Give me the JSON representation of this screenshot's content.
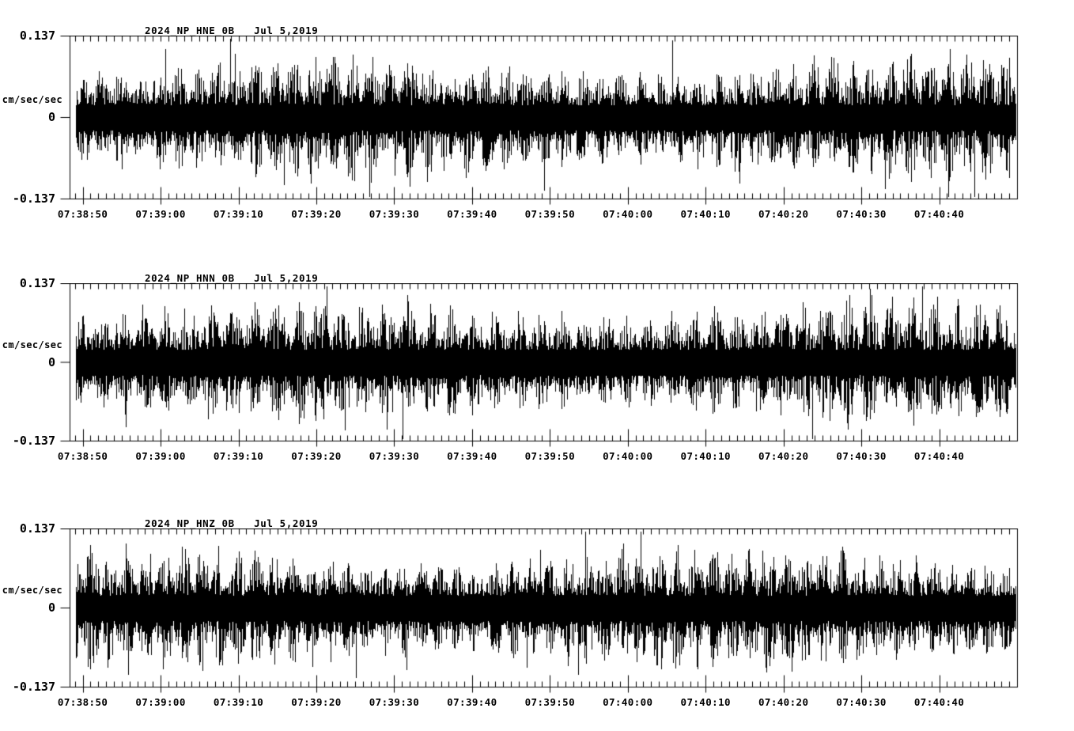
{
  "page": {
    "background": "#ffffff",
    "foreground": "#000000"
  },
  "axis": {
    "y_label": "cm/sec/sec",
    "y_max_label": "0.137",
    "y_zero_label": "0",
    "y_min_label": "-0.137",
    "x_tick_labels": [
      "07:38:50",
      "07:39:00",
      "07:39:10",
      "07:39:20",
      "07:39:30",
      "07:39:40",
      "07:39:50",
      "07:40:00",
      "07:40:10",
      "07:40:20",
      "07:40:30",
      "07:40:40"
    ]
  },
  "panels": [
    {
      "title": "2024_NP_HNE_0B   Jul 5,2019",
      "station_channel": "2024_NP_HNE_0B",
      "date": "Jul 5,2019",
      "y_axis_label": "cm/sec/sec",
      "y_max_label": "0.137",
      "y_zero_label": "0",
      "y_min_label": "-0.137",
      "seed": 11
    },
    {
      "title": "2024_NP_HNN_0B   Jul 5,2019",
      "station_channel": "2024_NP_HNN_0B",
      "date": "Jul 5,2019",
      "y_axis_label": "cm/sec/sec",
      "y_max_label": "0.137",
      "y_zero_label": "0",
      "y_min_label": "-0.137",
      "seed": 47
    },
    {
      "title": "2024_NP_HNZ_0B   Jul 5,2019",
      "station_channel": "2024_NP_HNZ_0B",
      "date": "Jul 5,2019",
      "y_axis_label": "cm/sec/sec",
      "y_max_label": "0.137",
      "y_zero_label": "0",
      "y_min_label": "-0.137",
      "seed": 83
    }
  ],
  "chart_data": [
    {
      "type": "line",
      "subtype": "seismogram",
      "title": "2024_NP_HNE_0B   Jul 5,2019",
      "station_channel": "2024_NP_HNE_0B",
      "date": "Jul 5,2019",
      "ylabel": "cm/sec/sec",
      "ylim": [
        -0.137,
        0.137
      ],
      "y_tick_values": [
        0.137,
        0,
        -0.137
      ],
      "x_tick_labels": [
        "07:38:50",
        "07:39:00",
        "07:39:10",
        "07:39:20",
        "07:39:30",
        "07:39:40",
        "07:39:50",
        "07:40:00",
        "07:40:10",
        "07:40:20",
        "07:40:30",
        "07:40:40"
      ],
      "x_range": {
        "start": "07:38:48",
        "end": "07:40:50"
      },
      "x_minor_tick_seconds": 1,
      "x_major_tick_seconds": 10,
      "grid": false,
      "legend": false,
      "series": [
        {
          "name": "2024_NP_HNE_0B",
          "color": "#000000",
          "description": "continuous high-frequency ground-acceleration noise; dense solid band about ±0.03 cm/sec/sec, repeating bursts to ±0.08-0.11 every ~2.5 s, occasional spikes clipped at ±0.137 full scale",
          "synthesized_seed": 11
        }
      ]
    },
    {
      "type": "line",
      "subtype": "seismogram",
      "title": "2024_NP_HNN_0B   Jul 5,2019",
      "station_channel": "2024_NP_HNN_0B",
      "date": "Jul 5,2019",
      "ylabel": "cm/sec/sec",
      "ylim": [
        -0.137,
        0.137
      ],
      "y_tick_values": [
        0.137,
        0,
        -0.137
      ],
      "x_tick_labels": [
        "07:38:50",
        "07:39:00",
        "07:39:10",
        "07:39:20",
        "07:39:30",
        "07:39:40",
        "07:39:50",
        "07:40:00",
        "07:40:10",
        "07:40:20",
        "07:40:30",
        "07:40:40"
      ],
      "x_range": {
        "start": "07:38:48",
        "end": "07:40:50"
      },
      "x_minor_tick_seconds": 1,
      "x_major_tick_seconds": 10,
      "grid": false,
      "legend": false,
      "series": [
        {
          "name": "2024_NP_HNN_0B",
          "color": "#000000",
          "description": "continuous high-frequency ground-acceleration noise; dense solid band about ±0.03 cm/sec/sec, rhythmic bursts to ±0.08-0.11, rare spikes toward ±0.137",
          "synthesized_seed": 47
        }
      ]
    },
    {
      "type": "line",
      "subtype": "seismogram",
      "title": "2024_NP_HNZ_0B   Jul 5,2019",
      "station_channel": "2024_NP_HNZ_0B",
      "date": "Jul 5,2019",
      "ylabel": "cm/sec/sec",
      "ylim": [
        -0.137,
        0.137
      ],
      "y_tick_values": [
        0.137,
        0,
        -0.137
      ],
      "x_tick_labels": [
        "07:38:50",
        "07:39:00",
        "07:39:10",
        "07:39:20",
        "07:39:30",
        "07:39:40",
        "07:39:50",
        "07:40:00",
        "07:40:10",
        "07:40:20",
        "07:40:30",
        "07:40:40"
      ],
      "x_range": {
        "start": "07:38:48",
        "end": "07:40:50"
      },
      "x_minor_tick_seconds": 1,
      "x_major_tick_seconds": 10,
      "grid": false,
      "legend": false,
      "series": [
        {
          "name": "2024_NP_HNZ_0B",
          "color": "#000000",
          "description": "continuous high-frequency ground-acceleration noise; dense solid band about ±0.03 cm/sec/sec, bursts to ±0.08-0.10, one large downward spike near 07:39:26 reaching about -0.137",
          "synthesized_seed": 83
        }
      ]
    }
  ]
}
